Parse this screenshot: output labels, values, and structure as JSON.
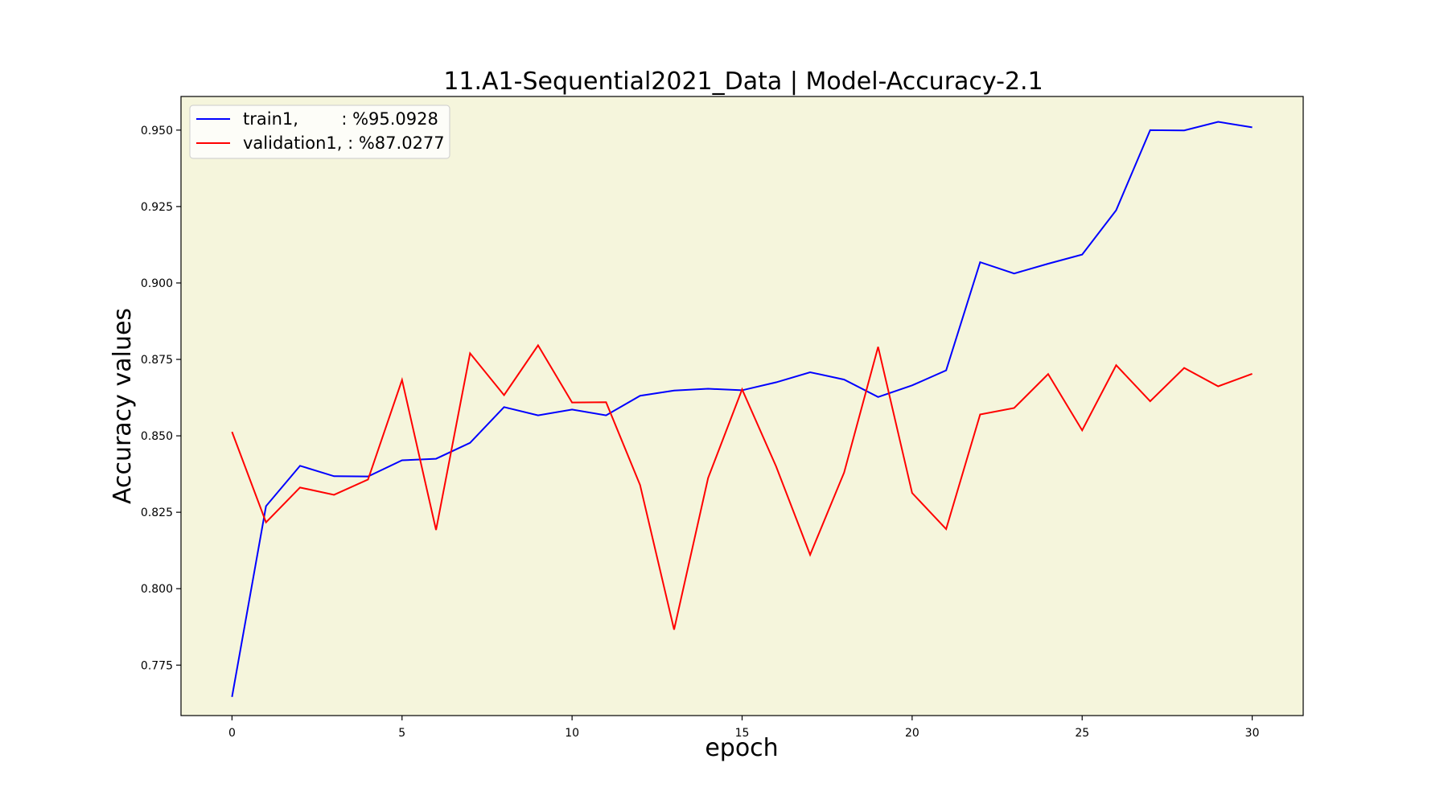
{
  "chart_data": {
    "type": "line",
    "title": "11.A1-Sequential2021_Data | Model-Accuracy-2.1",
    "xlabel": "epoch",
    "ylabel": "Accuracy values",
    "xlim": [
      -1.5,
      31.5
    ],
    "ylim": [
      0.7585,
      0.961
    ],
    "x_ticks": [
      0,
      5,
      10,
      15,
      20,
      25,
      30
    ],
    "y_ticks": [
      0.775,
      0.8,
      0.825,
      0.85,
      0.875,
      0.9,
      0.925,
      0.95
    ],
    "y_tick_labels": [
      "0.775",
      "0.800",
      "0.825",
      "0.850",
      "0.875",
      "0.900",
      "0.925",
      "0.950"
    ],
    "x": [
      0,
      1,
      2,
      3,
      4,
      5,
      6,
      7,
      8,
      9,
      10,
      11,
      12,
      13,
      14,
      15,
      16,
      17,
      18,
      19,
      20,
      21,
      22,
      23,
      24,
      25,
      26,
      27,
      28,
      29,
      30
    ],
    "series": [
      {
        "name": "train1,        : %95.0928",
        "color": "#0000ff",
        "values": [
          0.7646,
          0.827,
          0.8402,
          0.8368,
          0.8367,
          0.842,
          0.8425,
          0.8477,
          0.8594,
          0.8567,
          0.8586,
          0.8567,
          0.8631,
          0.8648,
          0.8654,
          0.8649,
          0.8675,
          0.8708,
          0.8684,
          0.8627,
          0.8665,
          0.8714,
          0.9068,
          0.9031,
          0.9063,
          0.9093,
          0.9238,
          0.95,
          0.9499,
          0.9527,
          0.9509
        ]
      },
      {
        "name": "validation1, : %87.0277",
        "color": "#ff0000",
        "values": [
          0.8513,
          0.8217,
          0.8331,
          0.8307,
          0.8357,
          0.8683,
          0.8192,
          0.877,
          0.8633,
          0.8796,
          0.8609,
          0.861,
          0.8339,
          0.7866,
          0.8362,
          0.8652,
          0.84,
          0.8111,
          0.838,
          0.8791,
          0.8313,
          0.8195,
          0.857,
          0.8591,
          0.8702,
          0.8518,
          0.8731,
          0.8613,
          0.8722,
          0.8662,
          0.8703
        ]
      }
    ],
    "legend_position": "upper-left",
    "grid": false,
    "plot_background": "#f5f5dc",
    "axes_color": "#000000"
  }
}
